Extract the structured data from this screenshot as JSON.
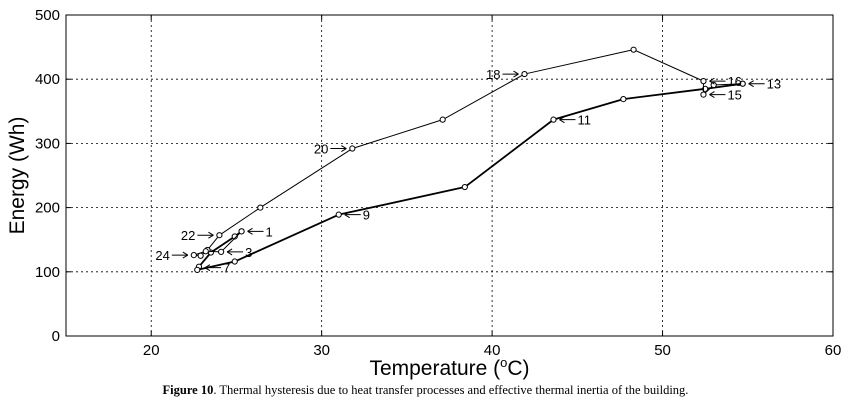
{
  "chart_data": {
    "type": "line",
    "xlabel": "Temperature (",
    "xlabel_sup": "o",
    "xlabel_tail": "C)",
    "ylabel": "Energy (Wh)",
    "xlim": [
      15,
      60
    ],
    "ylim": [
      0,
      500
    ],
    "xticks": [
      20,
      30,
      40,
      50,
      60
    ],
    "yticks": [
      0,
      100,
      200,
      300,
      400,
      500
    ],
    "grid": true,
    "series": [
      {
        "values": [
          [
            25.3,
            163
          ],
          [
            24.9,
            155
          ],
          [
            23.5,
            130
          ],
          [
            22.8,
            108
          ],
          [
            22.7,
            103
          ],
          [
            24.9,
            116
          ],
          [
            31.0,
            189
          ],
          [
            38.4,
            232
          ],
          [
            43.6,
            337
          ],
          [
            47.7,
            369
          ],
          [
            52.5,
            385
          ],
          [
            54.7,
            393
          ]
        ]
      },
      {
        "values": [
          [
            54.7,
            393
          ],
          [
            53.0,
            391
          ],
          [
            52.4,
            376
          ],
          [
            52.4,
            397
          ],
          [
            48.3,
            446
          ],
          [
            41.9,
            408
          ],
          [
            37.1,
            337
          ],
          [
            31.8,
            292
          ],
          [
            26.4,
            200
          ],
          [
            24.0,
            157
          ],
          [
            23.3,
            134
          ],
          [
            22.9,
            125
          ],
          [
            22.5,
            126
          ],
          [
            23.2,
            132
          ],
          [
            24.1,
            131
          ],
          [
            25.3,
            163
          ]
        ]
      }
    ],
    "annotations": [
      {
        "label": "1",
        "x": 25.3,
        "y": 163,
        "side": "right"
      },
      {
        "label": "3",
        "x": 24.1,
        "y": 131,
        "side": "right"
      },
      {
        "label": "7",
        "x": 22.8,
        "y": 108,
        "side": "right-below"
      },
      {
        "label": "9",
        "x": 31.0,
        "y": 189,
        "side": "right"
      },
      {
        "label": "11",
        "x": 43.6,
        "y": 337,
        "side": "right"
      },
      {
        "label": "13",
        "x": 54.7,
        "y": 393,
        "side": "right"
      },
      {
        "label": "15",
        "x": 52.4,
        "y": 376,
        "side": "right"
      },
      {
        "label": "16",
        "x": 52.4,
        "y": 397,
        "side": "right"
      },
      {
        "label": "18",
        "x": 41.9,
        "y": 408,
        "side": "left"
      },
      {
        "label": "20",
        "x": 31.8,
        "y": 292,
        "side": "left"
      },
      {
        "label": "22",
        "x": 24.0,
        "y": 157,
        "side": "left"
      },
      {
        "label": "24",
        "x": 22.5,
        "y": 126,
        "side": "left"
      }
    ],
    "colors": {
      "line": "#000000",
      "grid": "#000000",
      "background": "#ffffff"
    }
  },
  "caption": {
    "prefix": "Figure 10",
    "text": ". Thermal hysteresis due to heat transfer processes and effective thermal inertia of the building."
  }
}
